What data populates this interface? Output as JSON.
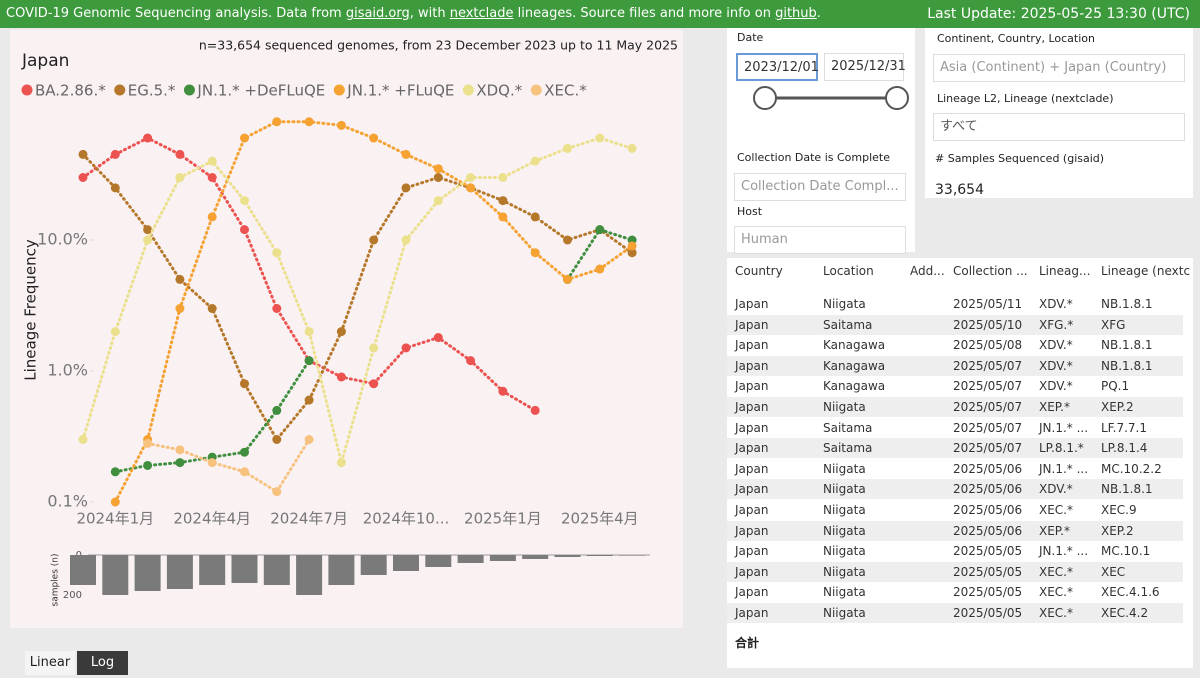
{
  "header": {
    "segments": [
      "COVID-19 Genomic Sequencing analysis. Data from ",
      "gisaid.org",
      ", with ",
      "nextclade",
      " lineages. Source files and more info on ",
      "github",
      "."
    ],
    "last_update": "Last Update: 2025-05-25 13:30 (UTC)"
  },
  "chart_data": [
    {
      "type": "line",
      "title": "Japan",
      "subtitle": "n=33,654 sequenced genomes, from 23 December 2023 up to 11 May 2025",
      "y_label": "Lineage Frequency",
      "log_scale": true,
      "x": [
        "2023-12",
        "2024-01",
        "2024-02",
        "2024-03",
        "2024-04",
        "2024-05",
        "2024-06",
        "2024-07",
        "2024-08",
        "2024-09",
        "2024-10",
        "2024-11",
        "2024-12",
        "2025-01",
        "2025-02",
        "2025-03",
        "2025-04",
        "2025-05"
      ],
      "xticks": [
        {
          "value": "2024-01",
          "label": "2024年1月"
        },
        {
          "value": "2024-04",
          "label": "2024年4月"
        },
        {
          "value": "2024-07",
          "label": "2024年7月"
        },
        {
          "value": "2024-10",
          "label": "2024年10..."
        },
        {
          "value": "2025-01",
          "label": "2025年1月"
        },
        {
          "value": "2025-04",
          "label": "2025年4月"
        }
      ],
      "ylim": [
        0.1,
        100
      ],
      "yticks": [
        {
          "value": 0.1,
          "label": "0.1%"
        },
        {
          "value": 1,
          "label": "1.0%"
        },
        {
          "value": 10,
          "label": "10.0%"
        }
      ],
      "series": [
        {
          "name": "BA.2.86.*",
          "color": "#ec524f",
          "values": [
            30,
            45,
            60,
            45,
            30,
            12,
            3,
            1.2,
            0.9,
            0.8,
            1.5,
            1.8,
            1.2,
            0.7,
            0.5,
            null,
            null,
            null
          ]
        },
        {
          "name": "EG.5.*",
          "color": "#b5782a",
          "values": [
            45,
            25,
            12,
            5,
            3,
            0.8,
            0.3,
            0.6,
            2,
            10,
            25,
            30,
            25,
            20,
            15,
            10,
            12,
            8
          ]
        },
        {
          "name": "JN.1.* +DeFLuQE",
          "color": "#3f8f3f",
          "values": [
            null,
            0.17,
            0.19,
            0.2,
            0.22,
            0.24,
            0.5,
            1.2,
            null,
            null,
            null,
            null,
            null,
            null,
            null,
            5,
            12,
            10
          ]
        },
        {
          "name": "JN.1.* +FLuQE",
          "color": "#f5a232",
          "values": [
            null,
            0.1,
            0.3,
            3,
            15,
            60,
            80,
            80,
            75,
            60,
            45,
            35,
            25,
            15,
            8,
            5,
            6,
            9
          ]
        },
        {
          "name": "XDQ.*",
          "color": "#ebe08c",
          "values": [
            0.3,
            2,
            10,
            30,
            40,
            20,
            8,
            2,
            0.2,
            1.5,
            10,
            20,
            30,
            30,
            40,
            50,
            60,
            50
          ]
        },
        {
          "name": "XEC.*",
          "color": "#f6c27e",
          "values": [
            null,
            null,
            0.28,
            0.25,
            0.2,
            0.17,
            0.12,
            0.3,
            null,
            null,
            null,
            null,
            null,
            null,
            null,
            null,
            null,
            null
          ]
        }
      ]
    },
    {
      "type": "bar",
      "y_label": "samples (n)",
      "color": "#7a7a7a",
      "ylim": [
        0,
        280
      ],
      "yticks": [
        0,
        200
      ],
      "values": [
        150,
        200,
        180,
        170,
        150,
        140,
        150,
        200,
        150,
        100,
        80,
        60,
        40,
        30,
        20,
        10,
        5,
        3
      ]
    }
  ],
  "filters": {
    "date": {
      "label": "Date",
      "start": "2023/12/01",
      "end": "2025/12/31"
    },
    "location": {
      "label": "Continent, Country, Location",
      "value": "Asia (Continent) + Japan (Country)"
    },
    "lineage": {
      "label": "Lineage L2, Lineage (nextclade)",
      "value": "すべて"
    },
    "complete": {
      "label": "Collection Date is Complete",
      "value": "Collection Date Compl..."
    },
    "host": {
      "label": "Host",
      "value": "Human"
    },
    "samples": {
      "label": "# Samples Sequenced (gisaid)",
      "value": "33,654"
    }
  },
  "table": {
    "columns": [
      "Country",
      "Location",
      "Add...",
      "Collection ...",
      "Lineag...",
      "Lineage (nextc"
    ],
    "rows": [
      [
        "Japan",
        "Niigata",
        "2025/05/11",
        "XDV.*",
        "NB.1.8.1"
      ],
      [
        "Japan",
        "Saitama",
        "2025/05/10",
        "XFG.*",
        "XFG"
      ],
      [
        "Japan",
        "Kanagawa",
        "2025/05/08",
        "XDV.*",
        "NB.1.8.1"
      ],
      [
        "Japan",
        "Kanagawa",
        "2025/05/07",
        "XDV.*",
        "NB.1.8.1"
      ],
      [
        "Japan",
        "Kanagawa",
        "2025/05/07",
        "XDV.*",
        "PQ.1"
      ],
      [
        "Japan",
        "Niigata",
        "2025/05/07",
        "XEP.*",
        "XEP.2"
      ],
      [
        "Japan",
        "Saitama",
        "2025/05/07",
        "JN.1.* ...",
        "LF.7.7.1"
      ],
      [
        "Japan",
        "Saitama",
        "2025/05/07",
        "LP.8.1.*",
        "LP.8.1.4"
      ],
      [
        "Japan",
        "Niigata",
        "2025/05/06",
        "JN.1.* ...",
        "MC.10.2.2"
      ],
      [
        "Japan",
        "Niigata",
        "2025/05/06",
        "XDV.*",
        "NB.1.8.1"
      ],
      [
        "Japan",
        "Niigata",
        "2025/05/06",
        "XEC.*",
        "XEC.9"
      ],
      [
        "Japan",
        "Niigata",
        "2025/05/06",
        "XEP.*",
        "XEP.2"
      ],
      [
        "Japan",
        "Niigata",
        "2025/05/05",
        "JN.1.* ...",
        "MC.10.1"
      ],
      [
        "Japan",
        "Niigata",
        "2025/05/05",
        "XEC.*",
        "XEC"
      ],
      [
        "Japan",
        "Niigata",
        "2025/05/05",
        "XEC.*",
        "XEC.4.1.6"
      ],
      [
        "Japan",
        "Niigata",
        "2025/05/05",
        "XEC.*",
        "XEC.4.2"
      ]
    ],
    "total": "合計"
  },
  "toggle": {
    "options": [
      "Linear",
      "Log"
    ]
  }
}
